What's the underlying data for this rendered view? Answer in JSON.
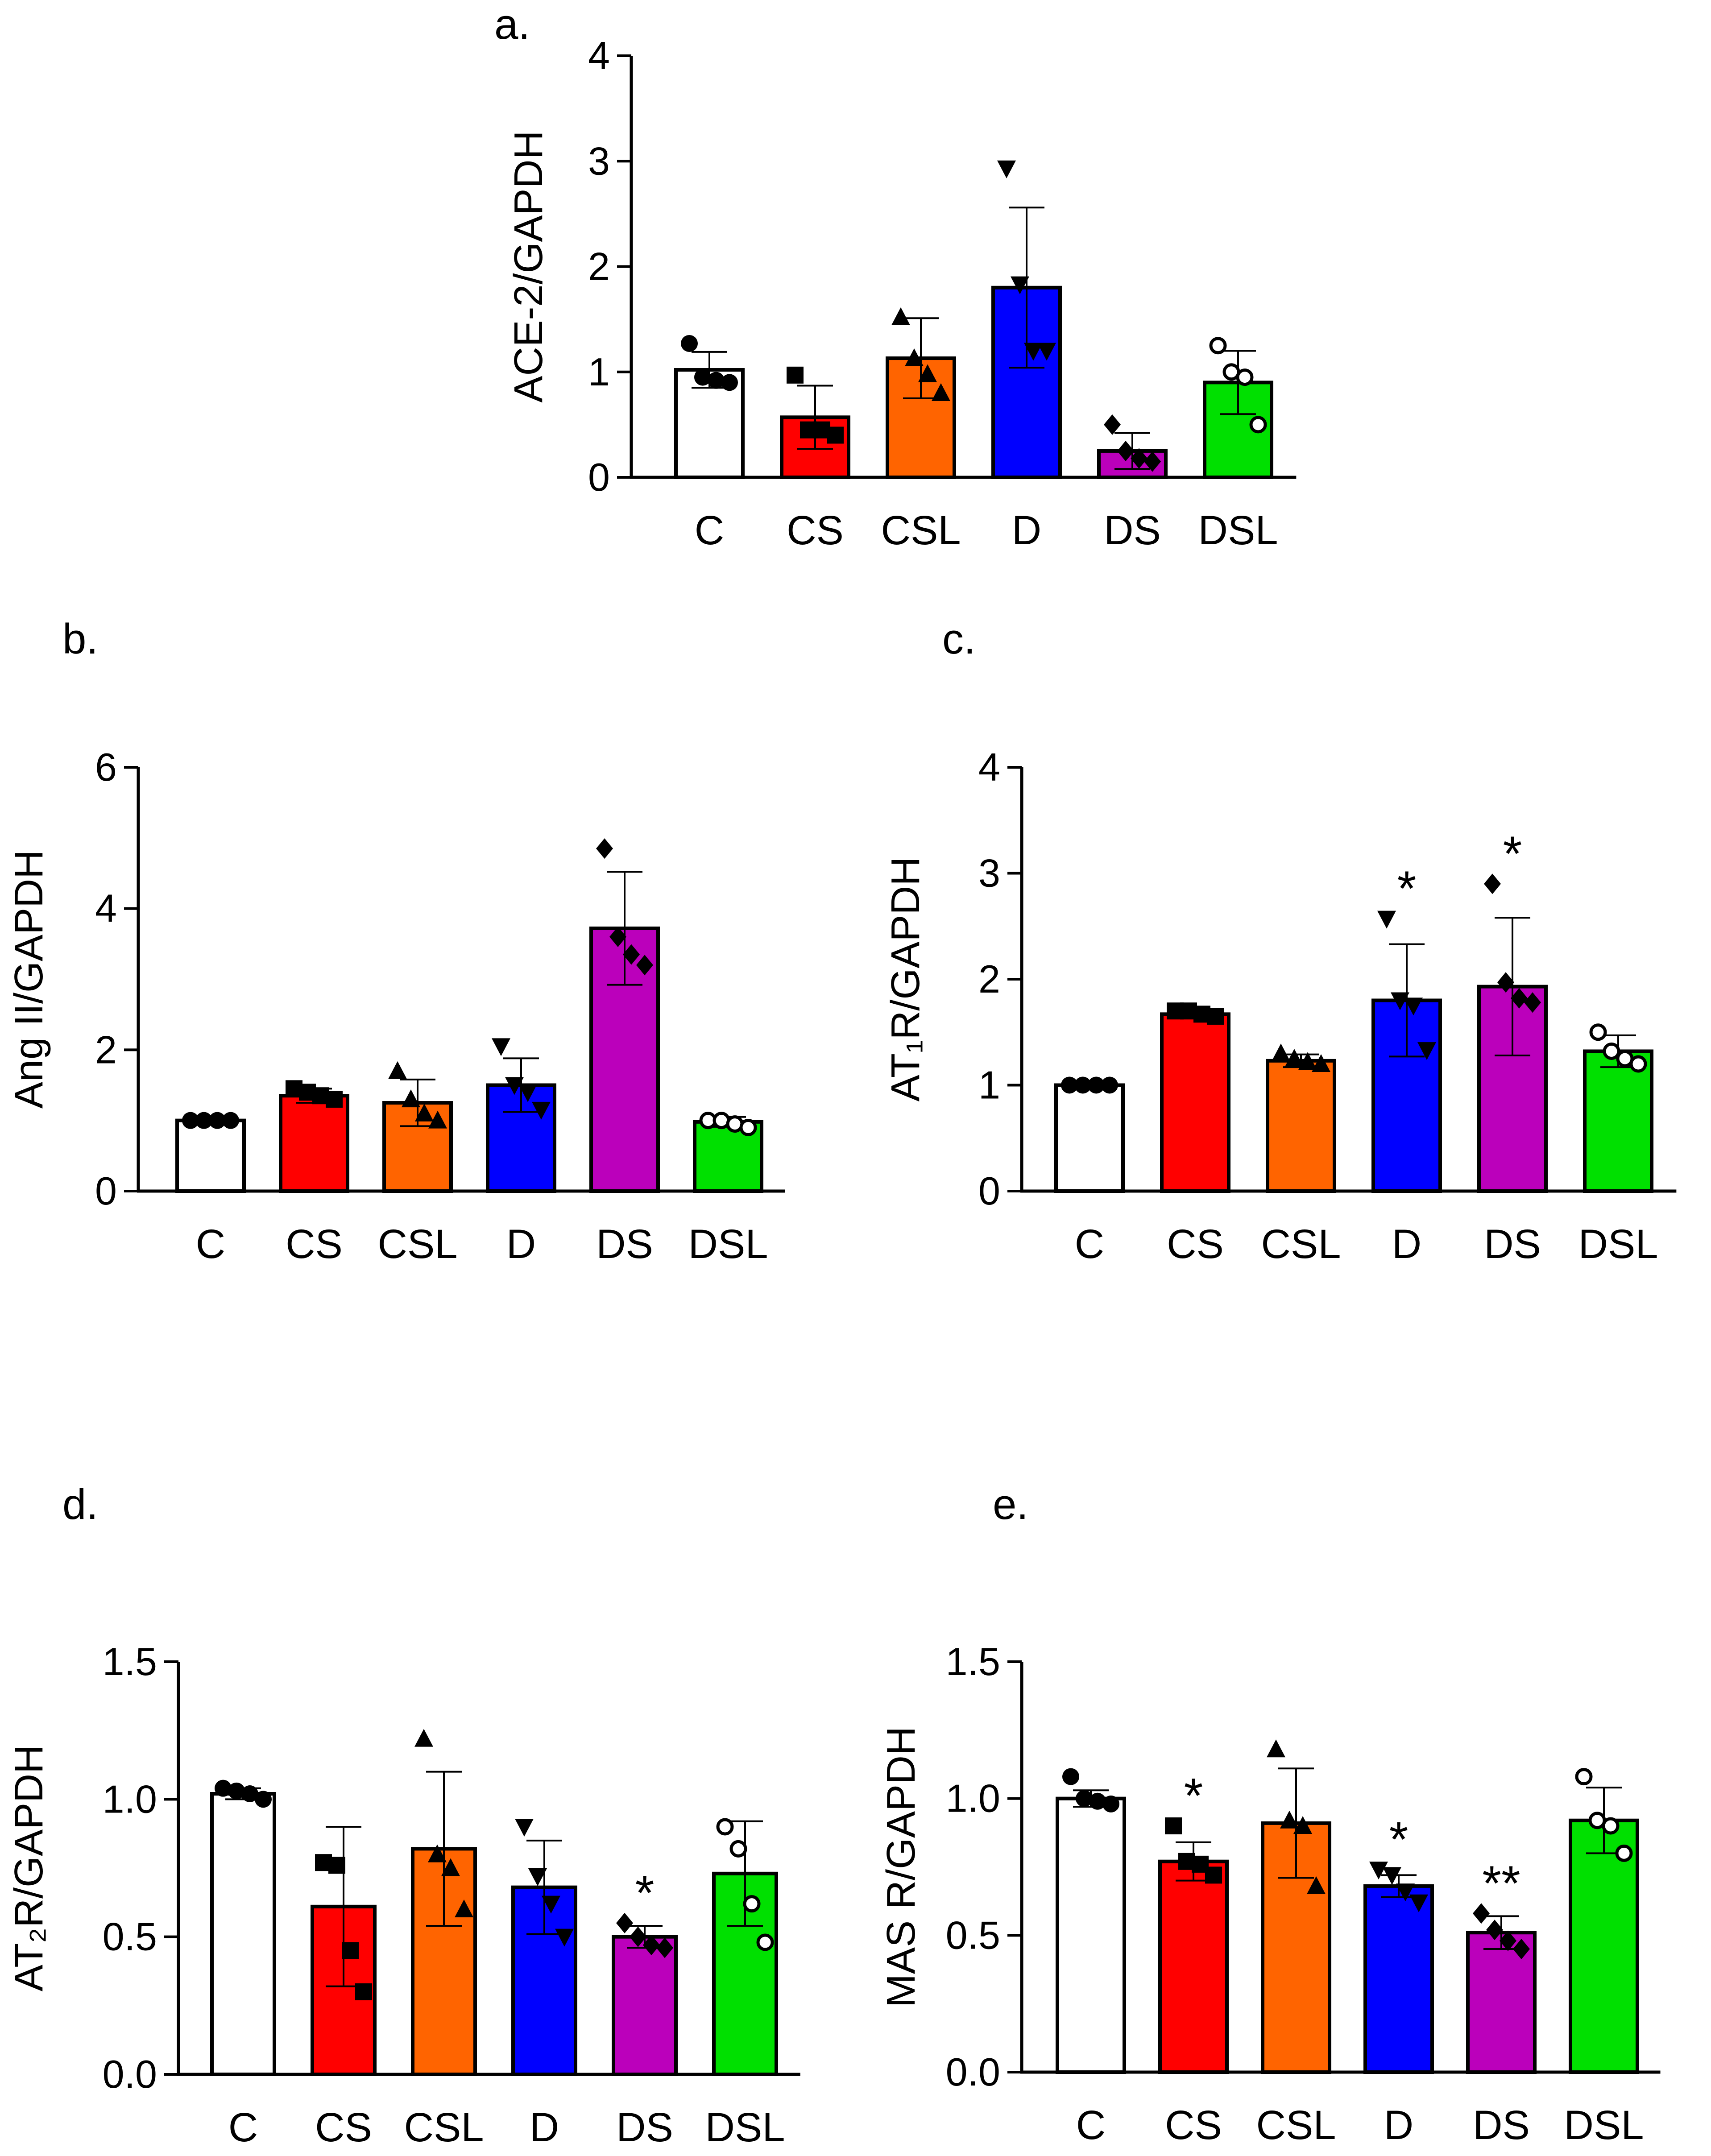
{
  "figure": {
    "panel_letters": [
      "a.",
      "b.",
      "c.",
      "d.",
      "e."
    ]
  },
  "chart_data": [
    {
      "id": "a",
      "type": "bar",
      "title": "a.",
      "ylabel": "ACE-2/GAPDH",
      "xlabel": "",
      "ylim": [
        0,
        4
      ],
      "yticks": [
        0,
        1,
        2,
        3,
        4
      ],
      "ytick_labels": [
        "0",
        "1",
        "2",
        "3",
        "4"
      ],
      "categories": [
        "C",
        "CS",
        "CSL",
        "D",
        "DS",
        "DSL"
      ],
      "values": [
        1.02,
        0.57,
        1.13,
        1.8,
        0.25,
        0.9
      ],
      "errors": [
        0.17,
        0.3,
        0.38,
        0.76,
        0.17,
        0.3
      ],
      "points": [
        [
          1.27,
          0.95,
          0.92,
          0.9
        ],
        [
          0.97,
          0.45,
          0.45,
          0.4
        ],
        [
          1.52,
          1.13,
          0.98,
          0.8
        ],
        [
          2.93,
          1.83,
          1.2,
          1.2
        ],
        [
          0.5,
          0.25,
          0.18,
          0.15
        ],
        [
          1.25,
          1.0,
          0.95,
          0.5
        ]
      ],
      "markers": [
        "circle",
        "square",
        "triangle",
        "triangle-down",
        "diamond",
        "circle-open"
      ],
      "significance": [
        "",
        "",
        "",
        "",
        "",
        ""
      ],
      "colors": [
        "#ffffff",
        "#ff0000",
        "#ff6400",
        "#0000ff",
        "#bb00bb",
        "#00e000"
      ]
    },
    {
      "id": "b",
      "type": "bar",
      "title": "b.",
      "ylabel": "Ang II/GAPDH",
      "xlabel": "",
      "ylim": [
        0,
        6
      ],
      "yticks": [
        0,
        2,
        4,
        6
      ],
      "ytick_labels": [
        "0",
        "2",
        "4",
        "6"
      ],
      "categories": [
        "C",
        "CS",
        "CSL",
        "D",
        "DS",
        "DSL"
      ],
      "values": [
        1.0,
        1.35,
        1.25,
        1.5,
        3.72,
        0.98
      ],
      "errors": [
        0.04,
        0.1,
        0.33,
        0.38,
        0.8,
        0.07
      ],
      "points": [
        [
          1.0,
          1.0,
          1.0,
          1.0
        ],
        [
          1.45,
          1.4,
          1.35,
          1.3
        ],
        [
          1.7,
          1.3,
          1.1,
          1.0
        ],
        [
          2.05,
          1.5,
          1.4,
          1.15
        ],
        [
          4.85,
          3.6,
          3.35,
          3.2
        ],
        [
          1.0,
          1.0,
          0.95,
          0.9
        ]
      ],
      "markers": [
        "circle",
        "square",
        "triangle",
        "triangle-down",
        "diamond",
        "circle-open"
      ],
      "significance": [
        "",
        "",
        "",
        "",
        "",
        ""
      ],
      "colors": [
        "#ffffff",
        "#ff0000",
        "#ff6400",
        "#0000ff",
        "#bb00bb",
        "#00e000"
      ]
    },
    {
      "id": "c",
      "type": "bar",
      "title": "c.",
      "ylabel": "AT₁R/GAPDH",
      "xlabel": "",
      "ylim": [
        0,
        4
      ],
      "yticks": [
        0,
        1,
        2,
        3,
        4
      ],
      "ytick_labels": [
        "0",
        "1",
        "2",
        "3",
        "4"
      ],
      "categories": [
        "C",
        "CS",
        "CSL",
        "D",
        "DS",
        "DSL"
      ],
      "values": [
        1.0,
        1.67,
        1.23,
        1.8,
        1.93,
        1.32
      ],
      "errors": [
        0.02,
        0.04,
        0.06,
        0.53,
        0.65,
        0.15
      ],
      "points": [
        [
          1.0,
          1.0,
          1.0,
          1.0
        ],
        [
          1.7,
          1.7,
          1.67,
          1.65
        ],
        [
          1.3,
          1.25,
          1.22,
          1.2
        ],
        [
          2.57,
          1.8,
          1.75,
          1.33
        ],
        [
          2.9,
          1.97,
          1.82,
          1.78
        ],
        [
          1.5,
          1.32,
          1.25,
          1.2
        ]
      ],
      "markers": [
        "circle",
        "square",
        "triangle",
        "triangle-down",
        "diamond",
        "circle-open"
      ],
      "significance": [
        "",
        "",
        "",
        "*",
        "*",
        ""
      ],
      "colors": [
        "#ffffff",
        "#ff0000",
        "#ff6400",
        "#0000ff",
        "#bb00bb",
        "#00e000"
      ]
    },
    {
      "id": "d",
      "type": "bar",
      "title": "d.",
      "ylabel": "AT₂R/GAPDH",
      "xlabel": "",
      "ylim": [
        0,
        1.5
      ],
      "yticks": [
        0,
        0.5,
        1.0,
        1.5
      ],
      "ytick_labels": [
        "0.0",
        "0.5",
        "1.0",
        "1.5"
      ],
      "categories": [
        "C",
        "CS",
        "CSL",
        "D",
        "DS",
        "DSL"
      ],
      "values": [
        1.02,
        0.61,
        0.82,
        0.68,
        0.5,
        0.73
      ],
      "errors": [
        0.02,
        0.29,
        0.28,
        0.17,
        0.04,
        0.19
      ],
      "points": [
        [
          1.04,
          1.03,
          1.02,
          1.0
        ],
        [
          0.77,
          0.76,
          0.45,
          0.3
        ],
        [
          1.22,
          0.8,
          0.75,
          0.6
        ],
        [
          0.9,
          0.72,
          0.62,
          0.5
        ],
        [
          0.55,
          0.5,
          0.47,
          0.46
        ],
        [
          0.9,
          0.82,
          0.62,
          0.48
        ]
      ],
      "markers": [
        "circle",
        "square",
        "triangle",
        "triangle-down",
        "diamond",
        "circle-open"
      ],
      "significance": [
        "",
        "",
        "",
        "",
        "*",
        ""
      ],
      "colors": [
        "#ffffff",
        "#ff0000",
        "#ff6400",
        "#0000ff",
        "#bb00bb",
        "#00e000"
      ]
    },
    {
      "id": "e",
      "type": "bar",
      "title": "e.",
      "ylabel": "MAS R/GAPDH",
      "xlabel": "",
      "ylim": [
        0,
        1.5
      ],
      "yticks": [
        0,
        0.5,
        1.0,
        1.5
      ],
      "ytick_labels": [
        "0.0",
        "0.5",
        "1.0",
        "1.5"
      ],
      "categories": [
        "C",
        "CS",
        "CSL",
        "D",
        "DS",
        "DSL"
      ],
      "values": [
        1.0,
        0.77,
        0.91,
        0.68,
        0.51,
        0.92
      ],
      "errors": [
        0.03,
        0.07,
        0.2,
        0.04,
        0.06,
        0.12
      ],
      "points": [
        [
          1.08,
          1.0,
          0.99,
          0.98
        ],
        [
          0.9,
          0.77,
          0.76,
          0.72
        ],
        [
          1.18,
          0.92,
          0.9,
          0.68
        ],
        [
          0.74,
          0.72,
          0.66,
          0.62
        ],
        [
          0.58,
          0.52,
          0.48,
          0.45
        ],
        [
          1.08,
          0.92,
          0.9,
          0.8
        ]
      ],
      "markers": [
        "circle",
        "square",
        "triangle",
        "triangle-down",
        "diamond",
        "circle-open"
      ],
      "significance": [
        "",
        "*",
        "",
        "*",
        "**",
        ""
      ],
      "colors": [
        "#ffffff",
        "#ff0000",
        "#ff6400",
        "#0000ff",
        "#bb00bb",
        "#00e000"
      ]
    }
  ]
}
